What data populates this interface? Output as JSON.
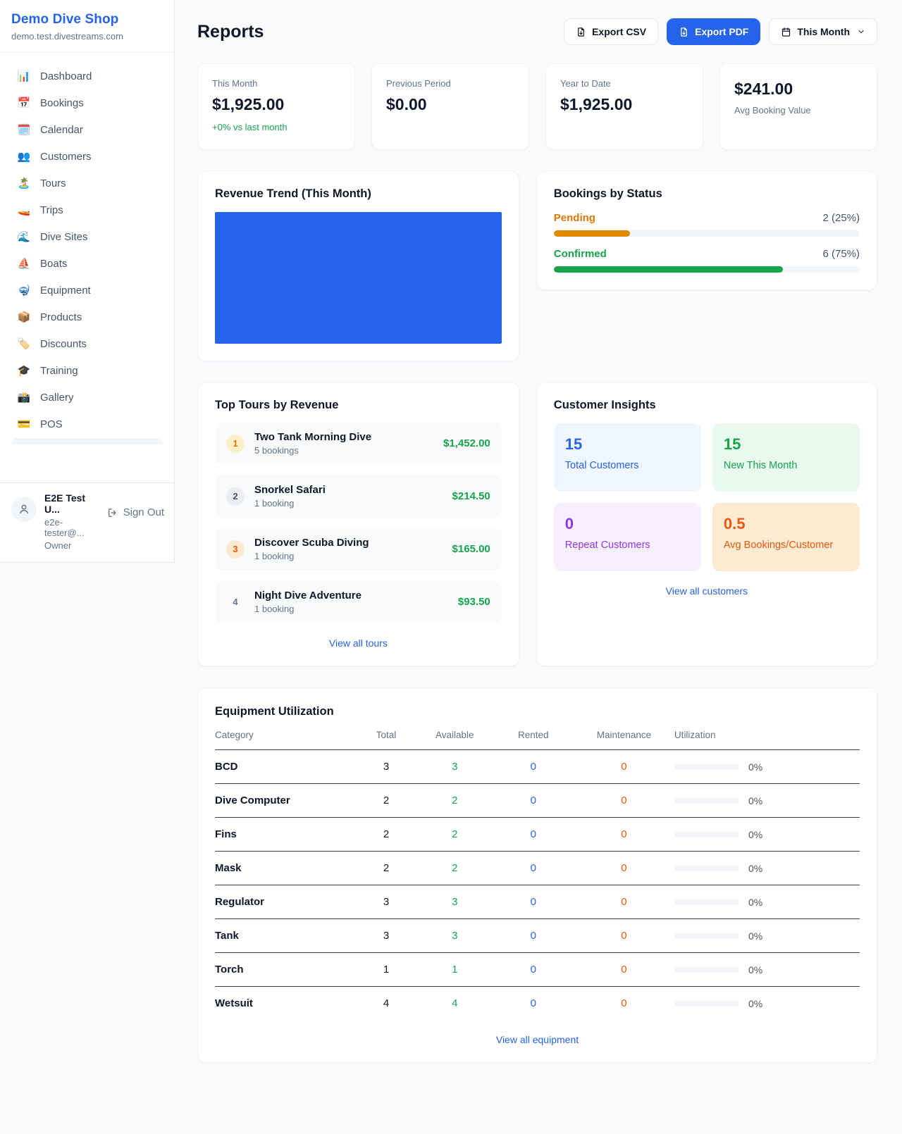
{
  "colors": {
    "primary": "#2563eb",
    "green": "#16a34a",
    "pending_orange": "#e08a00",
    "maintenance_orange": "#ea580c",
    "purple": "#9333ea"
  },
  "sidebar": {
    "title": "Demo Dive Shop",
    "domain": "demo.test.divestreams.com",
    "items": [
      {
        "icon": "📊",
        "label": "Dashboard"
      },
      {
        "icon": "📅",
        "label": "Bookings"
      },
      {
        "icon": "🗓️",
        "label": "Calendar"
      },
      {
        "icon": "👥",
        "label": "Customers"
      },
      {
        "icon": "🏝️",
        "label": "Tours"
      },
      {
        "icon": "🚤",
        "label": "Trips"
      },
      {
        "icon": "🌊",
        "label": "Dive Sites"
      },
      {
        "icon": "⛵",
        "label": "Boats"
      },
      {
        "icon": "🤿",
        "label": "Equipment"
      },
      {
        "icon": "📦",
        "label": "Products"
      },
      {
        "icon": "🏷️",
        "label": "Discounts"
      },
      {
        "icon": "🎓",
        "label": "Training"
      },
      {
        "icon": "📸",
        "label": "Gallery"
      },
      {
        "icon": "💳",
        "label": "POS"
      }
    ],
    "user": {
      "name": "E2E Test U...",
      "email": "e2e-tester@...",
      "role": "Owner",
      "signout_label": "Sign Out"
    }
  },
  "header": {
    "title": "Reports",
    "export_csv_label": "Export CSV",
    "export_pdf_label": "Export PDF",
    "period_label": "This Month"
  },
  "stats": [
    {
      "label": "This Month",
      "value": "$1,925.00",
      "delta": "+0% vs last month"
    },
    {
      "label": "Previous Period",
      "value": "$0.00"
    },
    {
      "label": "Year to Date",
      "value": "$1,925.00"
    },
    {
      "label": "Avg Booking Value",
      "value": "$241.00"
    }
  ],
  "revenue_trend": {
    "title": "Revenue Trend (This Month)"
  },
  "bookings_by_status": {
    "title": "Bookings by Status",
    "rows": [
      {
        "label": "Pending",
        "value": "2 (25%)",
        "pct": 25
      },
      {
        "label": "Confirmed",
        "value": "6 (75%)",
        "pct": 75
      }
    ]
  },
  "top_tours": {
    "title": "Top Tours by Revenue",
    "rows": [
      {
        "rank": "1",
        "name": "Two Tank Morning Dive",
        "bookings": "5 bookings",
        "amount": "$1,452.00"
      },
      {
        "rank": "2",
        "name": "Snorkel Safari",
        "bookings": "1 booking",
        "amount": "$214.50"
      },
      {
        "rank": "3",
        "name": "Discover Scuba Diving",
        "bookings": "1 booking",
        "amount": "$165.00"
      },
      {
        "rank": "4",
        "name": "Night Dive Adventure",
        "bookings": "1 booking",
        "amount": "$93.50"
      }
    ],
    "link": "View all tours"
  },
  "customer_insights": {
    "title": "Customer Insights",
    "tiles": [
      {
        "value": "15",
        "label": "Total Customers"
      },
      {
        "value": "15",
        "label": "New This Month"
      },
      {
        "value": "0",
        "label": "Repeat Customers"
      },
      {
        "value": "0.5",
        "label": "Avg Bookings/Customer"
      }
    ],
    "link": "View all customers"
  },
  "equipment": {
    "title": "Equipment Utilization",
    "columns": [
      "Category",
      "Total",
      "Available",
      "Rented",
      "Maintenance",
      "Utilization"
    ],
    "rows": [
      {
        "category": "BCD",
        "total": "3",
        "available": "3",
        "rented": "0",
        "maintenance": "0",
        "pct": 0,
        "pct_label": "0%"
      },
      {
        "category": "Dive Computer",
        "total": "2",
        "available": "2",
        "rented": "0",
        "maintenance": "0",
        "pct": 0,
        "pct_label": "0%"
      },
      {
        "category": "Fins",
        "total": "2",
        "available": "2",
        "rented": "0",
        "maintenance": "0",
        "pct": 0,
        "pct_label": "0%"
      },
      {
        "category": "Mask",
        "total": "2",
        "available": "2",
        "rented": "0",
        "maintenance": "0",
        "pct": 0,
        "pct_label": "0%"
      },
      {
        "category": "Regulator",
        "total": "3",
        "available": "3",
        "rented": "0",
        "maintenance": "0",
        "pct": 0,
        "pct_label": "0%"
      },
      {
        "category": "Tank",
        "total": "3",
        "available": "3",
        "rented": "0",
        "maintenance": "0",
        "pct": 0,
        "pct_label": "0%"
      },
      {
        "category": "Torch",
        "total": "1",
        "available": "1",
        "rented": "0",
        "maintenance": "0",
        "pct": 0,
        "pct_label": "0%"
      },
      {
        "category": "Wetsuit",
        "total": "4",
        "available": "4",
        "rented": "0",
        "maintenance": "0",
        "pct": 0,
        "pct_label": "0%"
      }
    ],
    "link": "View all equipment"
  }
}
